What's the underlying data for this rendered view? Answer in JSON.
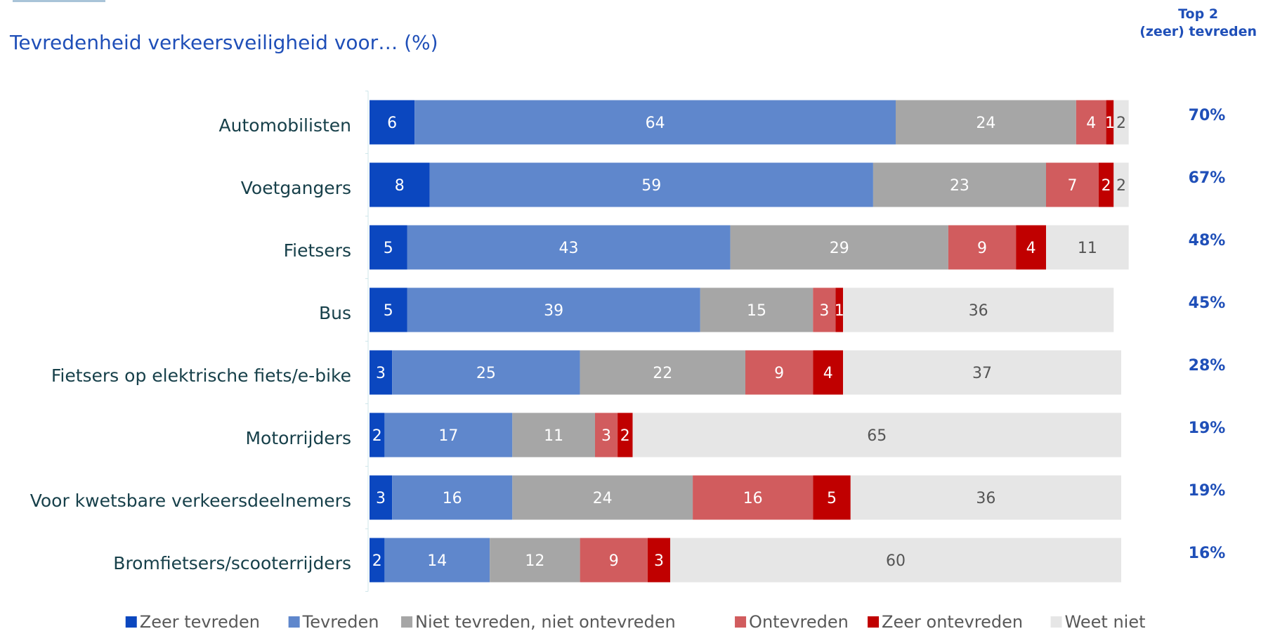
{
  "chart_data": {
    "type": "bar",
    "orientation": "horizontal",
    "stacked": true,
    "title": "Tevredenheid verkeersveiligheid voor… (%)",
    "categories": [
      "Automobilisten",
      "Voetgangers",
      "Fietsers",
      "Bus",
      "Fietsers op elektrische fiets/e-bike",
      "Motorrijders",
      "Voor kwetsbare verkeersdeelnemers",
      "Bromfietsers/scooterrijders"
    ],
    "series": [
      {
        "name": "Zeer tevreden",
        "color": "#0b47bf",
        "values": [
          6,
          8,
          5,
          5,
          3,
          2,
          3,
          2
        ]
      },
      {
        "name": "Tevreden",
        "color": "#5f87cc",
        "values": [
          64,
          59,
          43,
          39,
          25,
          17,
          16,
          14
        ]
      },
      {
        "name": "Niet tevreden, niet ontevreden",
        "color": "#a6a6a6",
        "values": [
          24,
          23,
          29,
          15,
          22,
          11,
          24,
          12
        ]
      },
      {
        "name": "Ontevreden",
        "color": "#d15c5e",
        "values": [
          4,
          7,
          9,
          3,
          9,
          3,
          16,
          9
        ]
      },
      {
        "name": "Zeer ontevreden",
        "color": "#c00000",
        "values": [
          1,
          2,
          4,
          1,
          4,
          2,
          5,
          3
        ]
      },
      {
        "name": "Weet niet",
        "color": "#e6e6e6",
        "values": [
          2,
          2,
          11,
          36,
          37,
          65,
          36,
          60
        ]
      }
    ],
    "top2_header": [
      "Top 2",
      "(zeer) tevreden"
    ],
    "top2_values": [
      "70%",
      "67%",
      "48%",
      "45%",
      "28%",
      "19%",
      "19%",
      "16%"
    ],
    "xlim": [
      0,
      100
    ],
    "legend_position": "bottom",
    "grid": false
  }
}
